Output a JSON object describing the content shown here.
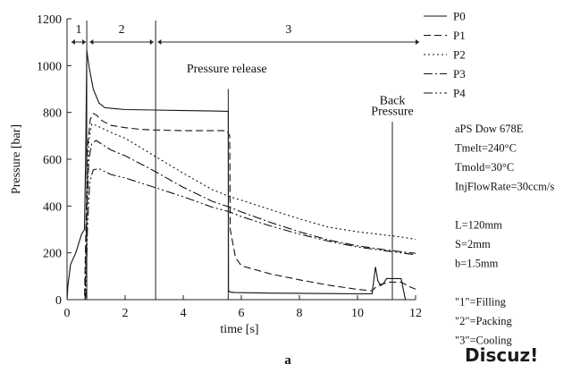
{
  "chart_data": {
    "type": "line",
    "xlabel": "time [s]",
    "ylabel": "Pressure [bar]",
    "xlim": [
      0,
      12
    ],
    "ylim": [
      0,
      1200
    ],
    "x_ticks": [
      "0",
      "2",
      "4",
      "6",
      "8",
      "10",
      "12"
    ],
    "y_ticks": [
      "0",
      "200",
      "400",
      "600",
      "800",
      "1000",
      "1200"
    ],
    "grid": false,
    "legend_position": "top-right",
    "figure_label": "a",
    "phases": [
      {
        "label": "1",
        "start": 0.15,
        "end": 0.65
      },
      {
        "label": "2",
        "start": 0.78,
        "end": 2.98
      },
      {
        "label": "3",
        "start": 3.12,
        "end": 12.2
      }
    ],
    "phase_boundaries": [
      0.68,
      3.05
    ],
    "annotations": [
      {
        "text": "Pressure release",
        "x": 5.5,
        "y": 970,
        "line_x": 5.55,
        "line_top": 900
      },
      {
        "text": "Back",
        "x": 11.2,
        "y": 835,
        "line_x": null,
        "line_top": null
      },
      {
        "text": "Pressure",
        "x": 11.2,
        "y": 790,
        "line_x": 11.2,
        "line_top": 760
      }
    ],
    "series": [
      {
        "name": "P0",
        "dash": "",
        "x": [
          0,
          0.03,
          0.12,
          0.3,
          0.5,
          0.6,
          0.64,
          0.68,
          0.75,
          0.9,
          1.1,
          1.3,
          2.0,
          3.0,
          4.0,
          5.0,
          5.55,
          5.56,
          5.6,
          5.8,
          7.0,
          8.0,
          9.0,
          10.0,
          10.5,
          10.62,
          10.7,
          10.8,
          10.9,
          11.0,
          11.5,
          11.6,
          11.65,
          12.0
        ],
        "values": [
          0,
          60,
          150,
          200,
          280,
          300,
          600,
          1065,
          1000,
          900,
          840,
          820,
          812,
          810,
          808,
          806,
          805,
          40,
          32,
          30,
          28,
          27,
          26,
          25,
          25,
          140,
          80,
          60,
          70,
          90,
          90,
          30,
          0,
          0
        ]
      },
      {
        "name": "P1",
        "dash": "8,4",
        "x": [
          0,
          0.6,
          0.65,
          0.7,
          0.8,
          0.9,
          1.0,
          1.2,
          1.5,
          2.0,
          2.5,
          3.0,
          4.0,
          5.0,
          5.5,
          5.6,
          5.62,
          5.8,
          6.0,
          7.0,
          8.0,
          9.0,
          10.0,
          10.5,
          10.6,
          10.8,
          11.1,
          11.5,
          11.8,
          12.0
        ],
        "values": [
          0,
          0,
          300,
          650,
          770,
          795,
          790,
          765,
          745,
          735,
          728,
          725,
          722,
          722,
          722,
          700,
          300,
          180,
          145,
          110,
          85,
          62,
          44,
          38,
          50,
          65,
          75,
          75,
          55,
          45
        ]
      },
      {
        "name": "P2",
        "dash": "2,3",
        "x": [
          0,
          0.62,
          0.68,
          0.75,
          0.85,
          1.0,
          1.5,
          2.0,
          3.0,
          4.0,
          5.0,
          5.6,
          6.0,
          7.0,
          8.0,
          9.0,
          10.0,
          11.0,
          11.5,
          12.0
        ],
        "values": [
          0,
          0,
          400,
          680,
          750,
          745,
          715,
          690,
          615,
          540,
          470,
          440,
          425,
          385,
          345,
          310,
          290,
          275,
          268,
          258
        ]
      },
      {
        "name": "P3",
        "dash": "10,3,2,3",
        "x": [
          0,
          0.62,
          0.68,
          0.75,
          0.85,
          1.0,
          1.5,
          2.0,
          3.0,
          4.0,
          5.0,
          5.6,
          6.0,
          7.0,
          8.0,
          9.0,
          10.0,
          11.0,
          11.5,
          12.0
        ],
        "values": [
          0,
          0,
          350,
          600,
          665,
          680,
          640,
          615,
          550,
          480,
          420,
          395,
          375,
          330,
          290,
          255,
          230,
          212,
          205,
          198
        ]
      },
      {
        "name": "P4",
        "dash": "10,3,2,3,2,3",
        "x": [
          0,
          0.65,
          0.7,
          0.78,
          0.9,
          1.1,
          1.5,
          2.0,
          3.0,
          4.0,
          5.0,
          5.6,
          6.0,
          7.0,
          8.0,
          9.0,
          10.0,
          11.0,
          11.5,
          12.0
        ],
        "values": [
          0,
          0,
          300,
          500,
          555,
          560,
          535,
          520,
          480,
          440,
          395,
          375,
          355,
          315,
          280,
          250,
          225,
          208,
          200,
          192
        ]
      }
    ]
  },
  "info_block": [
    "aPS Dow 678E",
    "Tmelt=240°C",
    "Tmold=30°C",
    "InjFlowRate=30ccm/s",
    "",
    "L=120mm",
    "S=2mm",
    "b=1.5mm",
    "",
    "\"1\"=Filling",
    "\"2\"=Packing",
    "\"3\"=Cooling"
  ],
  "watermark": "Discuz!"
}
